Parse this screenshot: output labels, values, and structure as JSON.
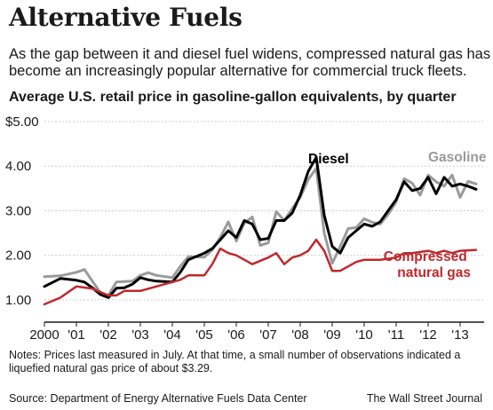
{
  "header": {
    "title": "Alternative Fuels",
    "subtitle": "As the gap between it and diesel fuel widens, compressed natural gas has become an increasingly popular alternative for commercial truck fleets.",
    "chart_heading": "Average U.S. retail price in gasoline-gallon equivalents, by quarter"
  },
  "footer": {
    "notes": "Notes: Prices last measured in July. At that time, a small number of observations indicated a liquefied natural gas price of about $3.29.",
    "source": "Source: Department of Energy Alternative Fuels Data Center",
    "credit": "The Wall Street Journal"
  },
  "chart_data": {
    "type": "line",
    "title": "Alternative Fuels",
    "subtitle": "Average U.S. retail price in gasoline-gallon equivalents, by quarter",
    "xlabel": "",
    "ylabel": "",
    "xlim": [
      2000,
      2013.75
    ],
    "ylim": [
      0.5,
      5.0
    ],
    "grid": true,
    "legend": "direct labels on lines",
    "x_ticks": [
      {
        "value": 2000,
        "label": "2000"
      },
      {
        "value": 2001,
        "label": "'01"
      },
      {
        "value": 2002,
        "label": "'02"
      },
      {
        "value": 2003,
        "label": "'03"
      },
      {
        "value": 2004,
        "label": "'04"
      },
      {
        "value": 2005,
        "label": "'05"
      },
      {
        "value": 2006,
        "label": "'06"
      },
      {
        "value": 2007,
        "label": "'07"
      },
      {
        "value": 2008,
        "label": "'08"
      },
      {
        "value": 2009,
        "label": "'09"
      },
      {
        "value": 2010,
        "label": "'10"
      },
      {
        "value": 2011,
        "label": "'11"
      },
      {
        "value": 2012,
        "label": "'12"
      },
      {
        "value": 2013,
        "label": "'13"
      }
    ],
    "y_ticks": [
      {
        "value": 1.0,
        "label": "1.00"
      },
      {
        "value": 2.0,
        "label": "2.00"
      },
      {
        "value": 3.0,
        "label": "3.00"
      },
      {
        "value": 4.0,
        "label": "4.00"
      },
      {
        "value": 5.0,
        "label": "$5.00"
      }
    ],
    "series": [
      {
        "name": "Gasoline",
        "color": "#9a9a9a",
        "points": [
          [
            2000.0,
            1.52
          ],
          [
            2000.5,
            1.54
          ],
          [
            2001.0,
            1.62
          ],
          [
            2001.25,
            1.68
          ],
          [
            2001.5,
            1.42
          ],
          [
            2001.75,
            1.16
          ],
          [
            2002.0,
            1.1
          ],
          [
            2002.25,
            1.4
          ],
          [
            2002.5,
            1.41
          ],
          [
            2002.75,
            1.42
          ],
          [
            2003.0,
            1.55
          ],
          [
            2003.25,
            1.61
          ],
          [
            2003.5,
            1.55
          ],
          [
            2004.0,
            1.5
          ],
          [
            2004.25,
            1.75
          ],
          [
            2004.5,
            1.97
          ],
          [
            2005.0,
            1.96
          ],
          [
            2005.25,
            2.12
          ],
          [
            2005.5,
            2.4
          ],
          [
            2005.75,
            2.75
          ],
          [
            2006.0,
            2.32
          ],
          [
            2006.25,
            2.72
          ],
          [
            2006.5,
            2.86
          ],
          [
            2006.75,
            2.22
          ],
          [
            2007.0,
            2.28
          ],
          [
            2007.25,
            2.98
          ],
          [
            2007.5,
            2.78
          ],
          [
            2007.75,
            3.05
          ],
          [
            2008.0,
            3.3
          ],
          [
            2008.25,
            3.7
          ],
          [
            2008.5,
            3.95
          ],
          [
            2008.75,
            2.5
          ],
          [
            2009.0,
            1.82
          ],
          [
            2009.25,
            2.2
          ],
          [
            2009.5,
            2.6
          ],
          [
            2009.75,
            2.62
          ],
          [
            2010.0,
            2.82
          ],
          [
            2010.25,
            2.74
          ],
          [
            2010.5,
            2.7
          ],
          [
            2010.75,
            2.92
          ],
          [
            2011.0,
            3.2
          ],
          [
            2011.25,
            3.72
          ],
          [
            2011.5,
            3.62
          ],
          [
            2011.75,
            3.35
          ],
          [
            2012.0,
            3.8
          ],
          [
            2012.25,
            3.65
          ],
          [
            2012.5,
            3.55
          ],
          [
            2012.75,
            3.8
          ],
          [
            2013.0,
            3.3
          ],
          [
            2013.25,
            3.66
          ],
          [
            2013.5,
            3.6
          ]
        ]
      },
      {
        "name": "Diesel",
        "color": "#000000",
        "points": [
          [
            2000.0,
            1.3
          ],
          [
            2000.5,
            1.48
          ],
          [
            2001.0,
            1.44
          ],
          [
            2001.25,
            1.4
          ],
          [
            2001.5,
            1.27
          ],
          [
            2001.75,
            1.12
          ],
          [
            2002.0,
            1.05
          ],
          [
            2002.25,
            1.26
          ],
          [
            2002.5,
            1.27
          ],
          [
            2002.75,
            1.35
          ],
          [
            2003.0,
            1.5
          ],
          [
            2003.25,
            1.45
          ],
          [
            2003.5,
            1.42
          ],
          [
            2004.0,
            1.4
          ],
          [
            2004.25,
            1.62
          ],
          [
            2004.5,
            1.9
          ],
          [
            2005.0,
            2.05
          ],
          [
            2005.25,
            2.15
          ],
          [
            2005.5,
            2.35
          ],
          [
            2005.75,
            2.55
          ],
          [
            2006.0,
            2.4
          ],
          [
            2006.25,
            2.78
          ],
          [
            2006.5,
            2.7
          ],
          [
            2006.75,
            2.35
          ],
          [
            2007.0,
            2.38
          ],
          [
            2007.25,
            2.78
          ],
          [
            2007.5,
            2.78
          ],
          [
            2007.75,
            2.95
          ],
          [
            2008.0,
            3.35
          ],
          [
            2008.25,
            3.88
          ],
          [
            2008.5,
            4.2
          ],
          [
            2008.75,
            2.9
          ],
          [
            2009.0,
            2.2
          ],
          [
            2009.25,
            2.05
          ],
          [
            2009.5,
            2.4
          ],
          [
            2009.75,
            2.55
          ],
          [
            2010.0,
            2.7
          ],
          [
            2010.25,
            2.65
          ],
          [
            2010.5,
            2.75
          ],
          [
            2010.75,
            3.0
          ],
          [
            2011.0,
            3.25
          ],
          [
            2011.25,
            3.65
          ],
          [
            2011.5,
            3.45
          ],
          [
            2011.75,
            3.5
          ],
          [
            2012.0,
            3.75
          ],
          [
            2012.25,
            3.38
          ],
          [
            2012.5,
            3.75
          ],
          [
            2012.75,
            3.55
          ],
          [
            2013.0,
            3.6
          ],
          [
            2013.25,
            3.55
          ],
          [
            2013.5,
            3.48
          ]
        ]
      },
      {
        "name": "Compressed natural gas",
        "color": "#c0282d",
        "points": [
          [
            2000.0,
            0.9
          ],
          [
            2000.5,
            1.05
          ],
          [
            2001.0,
            1.3
          ],
          [
            2001.5,
            1.25
          ],
          [
            2002.0,
            1.1
          ],
          [
            2002.25,
            1.1
          ],
          [
            2002.5,
            1.2
          ],
          [
            2003.0,
            1.2
          ],
          [
            2003.5,
            1.3
          ],
          [
            2004.0,
            1.4
          ],
          [
            2004.25,
            1.45
          ],
          [
            2004.5,
            1.55
          ],
          [
            2005.0,
            1.55
          ],
          [
            2005.25,
            1.8
          ],
          [
            2005.5,
            2.15
          ],
          [
            2005.75,
            2.05
          ],
          [
            2006.0,
            2.0
          ],
          [
            2006.5,
            1.8
          ],
          [
            2007.0,
            1.95
          ],
          [
            2007.25,
            2.05
          ],
          [
            2007.5,
            1.8
          ],
          [
            2007.75,
            1.95
          ],
          [
            2008.0,
            2.0
          ],
          [
            2008.25,
            2.1
          ],
          [
            2008.5,
            2.35
          ],
          [
            2008.75,
            2.1
          ],
          [
            2009.0,
            1.65
          ],
          [
            2009.25,
            1.65
          ],
          [
            2009.5,
            1.75
          ],
          [
            2009.75,
            1.85
          ],
          [
            2010.0,
            1.9
          ],
          [
            2010.5,
            1.9
          ],
          [
            2011.0,
            1.95
          ],
          [
            2011.25,
            2.05
          ],
          [
            2011.5,
            2.05
          ],
          [
            2012.0,
            2.1
          ],
          [
            2012.25,
            2.05
          ],
          [
            2012.5,
            2.1
          ],
          [
            2012.75,
            2.05
          ],
          [
            2013.0,
            2.1
          ],
          [
            2013.5,
            2.12
          ]
        ]
      }
    ]
  }
}
